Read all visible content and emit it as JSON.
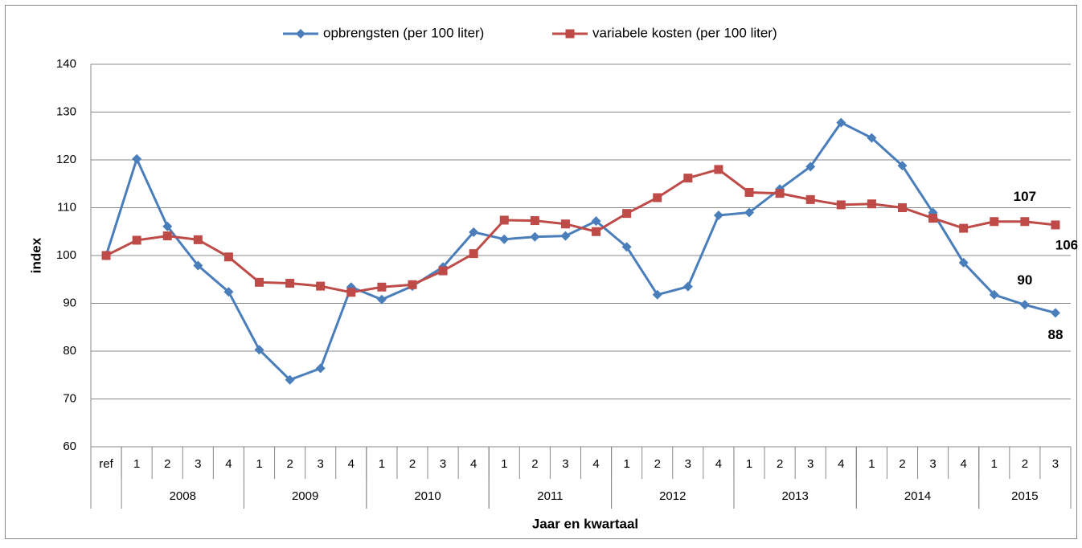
{
  "chart_data": {
    "type": "line",
    "ylabel": "index",
    "xlabel": "Jaar en kwartaal",
    "categories": [
      "ref",
      "1",
      "2",
      "3",
      "4",
      "1",
      "2",
      "3",
      "4",
      "1",
      "2",
      "3",
      "4",
      "1",
      "2",
      "3",
      "4",
      "1",
      "2",
      "3",
      "4",
      "1",
      "2",
      "3",
      "4",
      "1",
      "2",
      "3",
      "4",
      "1",
      "2",
      "3"
    ],
    "groups": [
      {
        "label": "2008",
        "size": 4
      },
      {
        "label": "2009",
        "size": 4
      },
      {
        "label": "2010",
        "size": 4
      },
      {
        "label": "2011",
        "size": 4
      },
      {
        "label": "2012",
        "size": 4
      },
      {
        "label": "2013",
        "size": 4
      },
      {
        "label": "2014",
        "size": 4
      },
      {
        "label": "2015",
        "size": 3
      }
    ],
    "series": [
      {
        "name": "opbrengsten (per 100 liter)",
        "color": "#4a7ebb",
        "marker": "diamond",
        "values": [
          100,
          120.2,
          106.1,
          97.9,
          92.4,
          80.3,
          74.0,
          76.4,
          93.4,
          90.8,
          93.6,
          97.6,
          104.9,
          103.4,
          103.9,
          104.1,
          107.2,
          101.8,
          91.8,
          93.5,
          108.4,
          109.0,
          113.9,
          118.6,
          127.8,
          124.6,
          118.8,
          109.0,
          98.5,
          91.8,
          89.7,
          88.0
        ],
        "value_labels": [
          null,
          null,
          null,
          null,
          null,
          null,
          null,
          null,
          null,
          null,
          null,
          null,
          null,
          null,
          null,
          null,
          null,
          null,
          null,
          null,
          null,
          null,
          null,
          null,
          null,
          null,
          null,
          null,
          null,
          null,
          "90",
          "88"
        ]
      },
      {
        "name": "variabele kosten (per 100 liter)",
        "color": "#be4b48",
        "marker": "square",
        "values": [
          100,
          103.2,
          104.1,
          103.3,
          99.7,
          94.4,
          94.2,
          93.6,
          92.3,
          93.4,
          93.9,
          96.8,
          100.4,
          107.4,
          107.3,
          106.6,
          105.0,
          108.8,
          112.1,
          116.2,
          118.0,
          113.2,
          113.0,
          111.7,
          110.6,
          110.8,
          110.0,
          107.8,
          105.7,
          107.1,
          107.1,
          106.4
        ],
        "value_labels": [
          null,
          null,
          null,
          null,
          null,
          null,
          null,
          null,
          null,
          null,
          null,
          null,
          null,
          null,
          null,
          null,
          null,
          null,
          null,
          null,
          null,
          null,
          null,
          null,
          null,
          null,
          null,
          null,
          null,
          null,
          "107",
          "106"
        ]
      }
    ],
    "ylim": [
      60,
      140
    ],
    "yticks": [
      60,
      70,
      80,
      90,
      100,
      110,
      120,
      130,
      140
    ],
    "grid": true,
    "legend": "top"
  }
}
